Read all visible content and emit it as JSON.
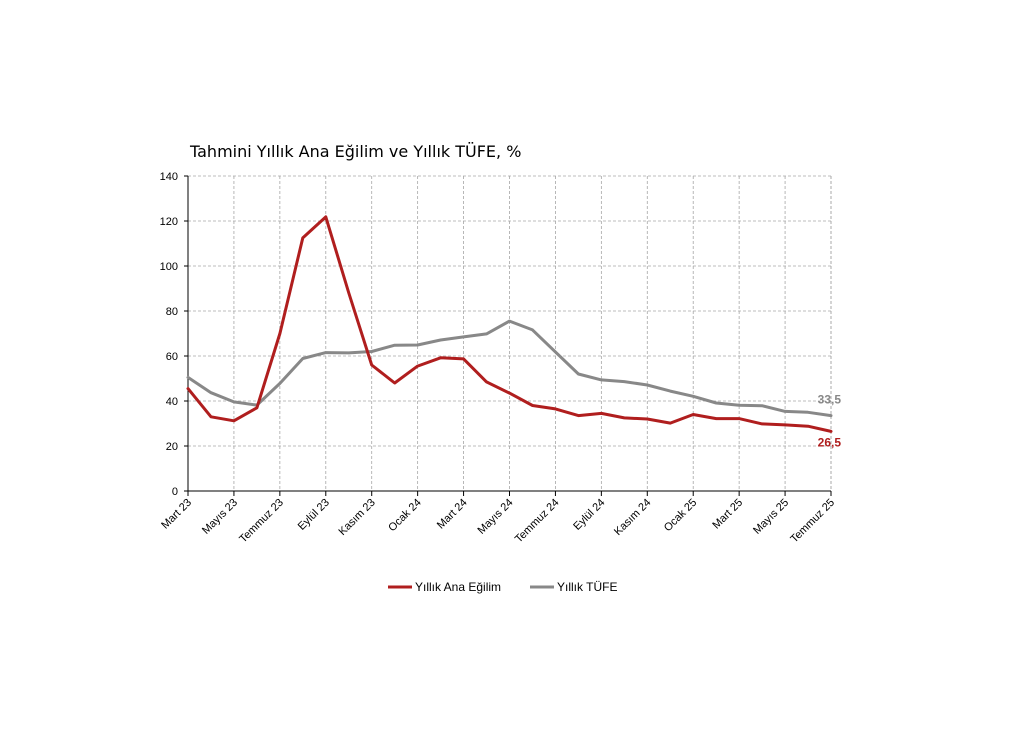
{
  "chart_data": {
    "type": "line",
    "title": "Tahmini Yıllık Ana Eğilim ve Yıllık TÜFE, %",
    "xlabel": "",
    "ylabel": "",
    "ylim": [
      0,
      140
    ],
    "yticks": [
      0,
      20,
      40,
      60,
      80,
      100,
      120,
      140
    ],
    "grid": true,
    "legend_position": "bottom",
    "x": [
      "Mart 23",
      "Nisan 23",
      "Mayıs 23",
      "Haziran 23",
      "Temmuz 23",
      "Ağustos 23",
      "Eylül 23",
      "Ekim 23",
      "Kasım 23",
      "Aralık 23",
      "Ocak 24",
      "Şubat 24",
      "Mart 24",
      "Nisan 24",
      "Mayıs 24",
      "Haziran 24",
      "Temmuz 24",
      "Ağustos 24",
      "Eylül 24",
      "Ekim 24",
      "Kasım 24",
      "Aralık 24",
      "Ocak 25",
      "Şubat 25",
      "Mart 25",
      "Nisan 25",
      "Mayıs 25",
      "Haziran 25",
      "Temmuz 25"
    ],
    "tick_labels": [
      "Mart 23",
      "Mayıs 23",
      "Temmuz 23",
      "Eylül 23",
      "Kasım 23",
      "Ocak 24",
      "Mart 24",
      "Mayıs 24",
      "Temmuz 24",
      "Eylül 24",
      "Kasım 24",
      "Ocak 25",
      "Mart 25",
      "Mayıs 25",
      "Temmuz 25"
    ],
    "series": [
      {
        "name": "Yıllık Ana Eğilim",
        "color": "#b01e1e",
        "values": [
          45.5,
          33.0,
          31.2,
          37.0,
          70.0,
          112.5,
          121.8,
          88.0,
          56.0,
          48.0,
          55.5,
          59.2,
          58.7,
          48.5,
          43.5,
          38.0,
          36.5,
          33.5,
          34.5,
          32.5,
          32.0,
          30.2,
          34.0,
          32.2,
          32.2,
          29.8,
          29.4,
          28.8,
          26.5
        ],
        "end_label": "26,5"
      },
      {
        "name": "Yıllık TÜFE",
        "color": "#888888",
        "values": [
          50.5,
          43.7,
          39.6,
          38.2,
          47.8,
          58.9,
          61.5,
          61.4,
          62.0,
          64.8,
          64.9,
          67.1,
          68.5,
          69.8,
          75.5,
          71.6,
          61.8,
          52.0,
          49.4,
          48.6,
          47.1,
          44.4,
          42.1,
          39.1,
          38.1,
          37.9,
          35.4,
          35.0,
          33.5
        ],
        "end_label": "33,5"
      }
    ]
  }
}
